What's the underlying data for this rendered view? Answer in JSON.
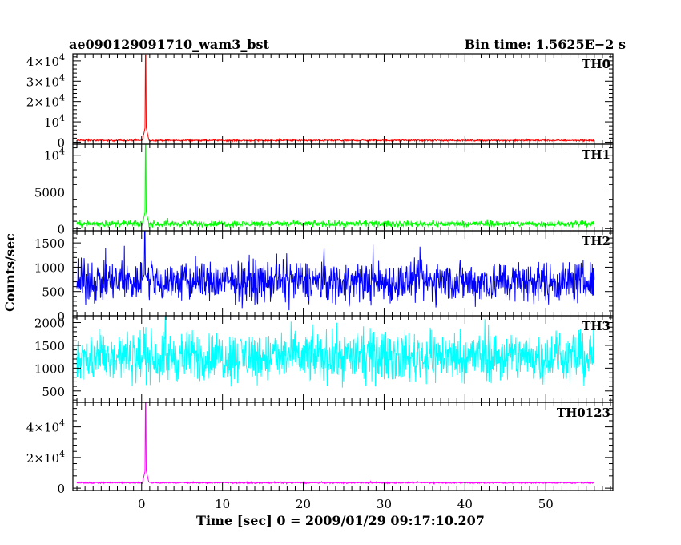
{
  "header": {
    "left_title": "ae090129091710_wam3_bst",
    "right_title": "Bin time: 1.5625E−2  s"
  },
  "chart_data": {
    "type": "line",
    "xlabel": "Time [sec] 0 = 2009/01/29 09:17:10.207",
    "ylabel": "Counts/sec",
    "xlim": [
      -8.5,
      58.3
    ],
    "x_ticks": [
      0,
      10,
      20,
      30,
      40,
      50
    ],
    "x_tick_labels": [
      "0",
      "10",
      "20",
      "30",
      "40",
      "50"
    ],
    "grid": false,
    "legend": "none",
    "data_x_range": [
      -8,
      56
    ],
    "panels": [
      {
        "name": "TH0",
        "color": "#ff0000",
        "ylim": [
          -1000,
          43500
        ],
        "yticks": [
          {
            "v": 0,
            "label": "0"
          },
          {
            "v": 10000,
            "label": "10",
            "exp": "4"
          },
          {
            "v": 20000,
            "label": "2×10",
            "exp": "4"
          },
          {
            "v": 30000,
            "label": "3×10",
            "exp": "4"
          },
          {
            "v": 40000,
            "label": "4×10",
            "exp": "4"
          }
        ],
        "baseline": 900,
        "noise": 300,
        "peaks": [
          {
            "t": 0.5,
            "v": 43000
          }
        ]
      },
      {
        "name": "TH1",
        "color": "#00ff00",
        "ylim": [
          -300,
          11500
        ],
        "yticks": [
          {
            "v": 0,
            "label": "0"
          },
          {
            "v": 5000,
            "label": "5000"
          },
          {
            "v": 10000,
            "label": "10",
            "exp": "4"
          }
        ],
        "baseline": 650,
        "noise": 320,
        "peaks": [
          {
            "t": 0.5,
            "v": 11500
          }
        ]
      },
      {
        "name": "TH2",
        "color": "#0000ff",
        "ylim": [
          0,
          1750
        ],
        "yticks": [
          {
            "v": 0,
            "label": "0"
          },
          {
            "v": 500,
            "label": "500"
          },
          {
            "v": 1000,
            "label": "1000"
          },
          {
            "v": 1500,
            "label": "1500"
          }
        ],
        "baseline": 700,
        "noise": 320,
        "peaks": [
          {
            "t": 0.4,
            "v": 1750
          }
        ]
      },
      {
        "name": "TH3",
        "color": "#00ffff",
        "ylim": [
          250,
          2150
        ],
        "yticks": [
          {
            "v": 500,
            "label": "500"
          },
          {
            "v": 1000,
            "label": "1000"
          },
          {
            "v": 1500,
            "label": "1500"
          },
          {
            "v": 2000,
            "label": "2000"
          }
        ],
        "baseline": 1250,
        "noise": 420,
        "peaks": []
      },
      {
        "name": "TH0123",
        "color": "#ff00ff",
        "ylim": [
          -1500,
          56000
        ],
        "yticks": [
          {
            "v": 0,
            "label": "0"
          },
          {
            "v": 20000,
            "label": "2×10",
            "exp": "4"
          },
          {
            "v": 40000,
            "label": "4×10",
            "exp": "4"
          }
        ],
        "baseline": 3500,
        "noise": 350,
        "peaks": [
          {
            "t": 0.5,
            "v": 56000
          }
        ]
      }
    ]
  }
}
